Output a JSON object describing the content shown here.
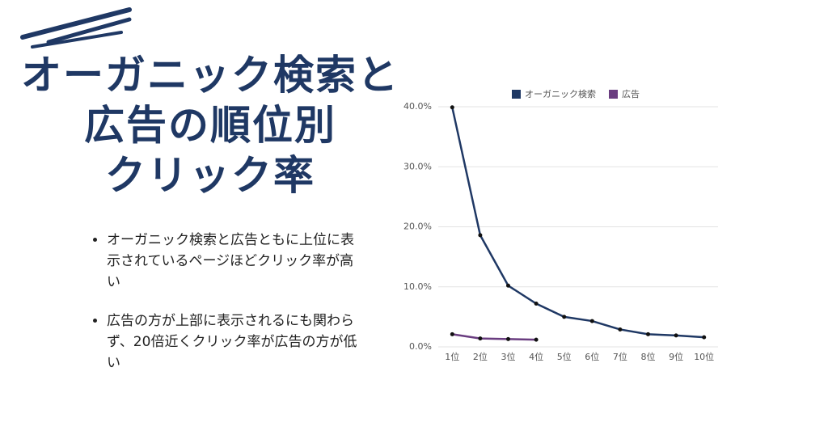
{
  "title_lines": [
    "オーガニック検索と",
    "広告の順位別",
    "クリック率"
  ],
  "bullets": [
    "オーガニック検索と広告ともに上位に表示されているページほどクリック率が高い",
    "広告の方が上部に表示されるにも関わらず、20倍近くクリック率が広告の方が低い"
  ],
  "chart_data": {
    "type": "line",
    "categories": [
      "1位",
      "2位",
      "3位",
      "4位",
      "5位",
      "6位",
      "7位",
      "8位",
      "9位",
      "10位"
    ],
    "series": [
      {
        "name": "オーガニック検索",
        "color": "#1f3864",
        "values": [
          39.9,
          18.6,
          10.2,
          7.2,
          5.0,
          4.3,
          2.9,
          2.1,
          1.9,
          1.6
        ]
      },
      {
        "name": "広告",
        "color": "#6a3d80",
        "values": [
          2.1,
          1.4,
          1.3,
          1.2,
          null,
          null,
          null,
          null,
          null,
          null
        ]
      }
    ],
    "ylim": [
      0,
      40
    ],
    "yticks": [
      {
        "value": 0,
        "label": "0.0%"
      },
      {
        "value": 10,
        "label": "10.0%"
      },
      {
        "value": 20,
        "label": "20.0%"
      },
      {
        "value": 30,
        "label": "30.0%"
      },
      {
        "value": 40,
        "label": "40.0%"
      }
    ],
    "grid": true,
    "legend": "top"
  }
}
